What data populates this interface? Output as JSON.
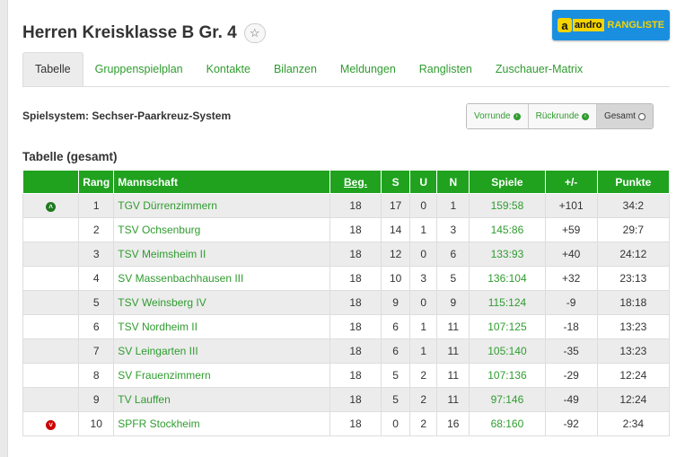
{
  "header": {
    "title": "Herren Kreisklasse B Gr. 4",
    "star_icon": "star-icon",
    "banner": {
      "logo_letter": "a",
      "brand": "andro",
      "label": "RANGLISTE"
    }
  },
  "tabs": [
    {
      "label": "Tabelle",
      "active": true
    },
    {
      "label": "Gruppenspielplan"
    },
    {
      "label": "Kontakte"
    },
    {
      "label": "Bilanzen"
    },
    {
      "label": "Meldungen"
    },
    {
      "label": "Ranglisten"
    },
    {
      "label": "Zuschauer-Matrix"
    }
  ],
  "spielsystem": "Spielsystem: Sechser-Paarkreuz-System",
  "round_buttons": [
    {
      "label": "Vorrunde",
      "icon": "arrow-right-circle-icon"
    },
    {
      "label": "Rückrunde",
      "icon": "arrow-left-circle-icon"
    },
    {
      "label": "Gesamt",
      "icon": "dot-circle-icon",
      "active": true
    }
  ],
  "section_title": "Tabelle (gesamt)",
  "table": {
    "headers": [
      "",
      "Rang",
      "Mannschaft",
      "Beg.",
      "S",
      "U",
      "N",
      "Spiele",
      "+/-",
      "Punkte"
    ],
    "rows": [
      {
        "marker": "up",
        "rang": "1",
        "team": "TGV Dürrenzimmern",
        "beg": "18",
        "s": "17",
        "u": "0",
        "n": "1",
        "spiele": "159:58",
        "diff": "+101",
        "punkte": "34:2"
      },
      {
        "marker": "",
        "rang": "2",
        "team": "TSV Ochsenburg",
        "beg": "18",
        "s": "14",
        "u": "1",
        "n": "3",
        "spiele": "145:86",
        "diff": "+59",
        "punkte": "29:7"
      },
      {
        "marker": "",
        "rang": "3",
        "team": "TSV Meimsheim II",
        "beg": "18",
        "s": "12",
        "u": "0",
        "n": "6",
        "spiele": "133:93",
        "diff": "+40",
        "punkte": "24:12"
      },
      {
        "marker": "",
        "rang": "4",
        "team": "SV Massenbachhausen III",
        "beg": "18",
        "s": "10",
        "u": "3",
        "n": "5",
        "spiele": "136:104",
        "diff": "+32",
        "punkte": "23:13"
      },
      {
        "marker": "",
        "rang": "5",
        "team": "TSV Weinsberg IV",
        "beg": "18",
        "s": "9",
        "u": "0",
        "n": "9",
        "spiele": "115:124",
        "diff": "-9",
        "punkte": "18:18"
      },
      {
        "marker": "",
        "rang": "6",
        "team": "TSV Nordheim II",
        "beg": "18",
        "s": "6",
        "u": "1",
        "n": "11",
        "spiele": "107:125",
        "diff": "-18",
        "punkte": "13:23"
      },
      {
        "marker": "",
        "rang": "7",
        "team": "SV Leingarten III",
        "beg": "18",
        "s": "6",
        "u": "1",
        "n": "11",
        "spiele": "105:140",
        "diff": "-35",
        "punkte": "13:23"
      },
      {
        "marker": "",
        "rang": "8",
        "team": "SV Frauenzimmern",
        "beg": "18",
        "s": "5",
        "u": "2",
        "n": "11",
        "spiele": "107:136",
        "diff": "-29",
        "punkte": "12:24"
      },
      {
        "marker": "",
        "rang": "9",
        "team": "TV Lauffen",
        "beg": "18",
        "s": "5",
        "u": "2",
        "n": "11",
        "spiele": "97:146",
        "diff": "-49",
        "punkte": "12:24"
      },
      {
        "marker": "down",
        "rang": "10",
        "team": "SPFR Stockheim",
        "beg": "18",
        "s": "0",
        "u": "2",
        "n": "16",
        "spiele": "68:160",
        "diff": "-92",
        "punkte": "2:34"
      }
    ]
  }
}
